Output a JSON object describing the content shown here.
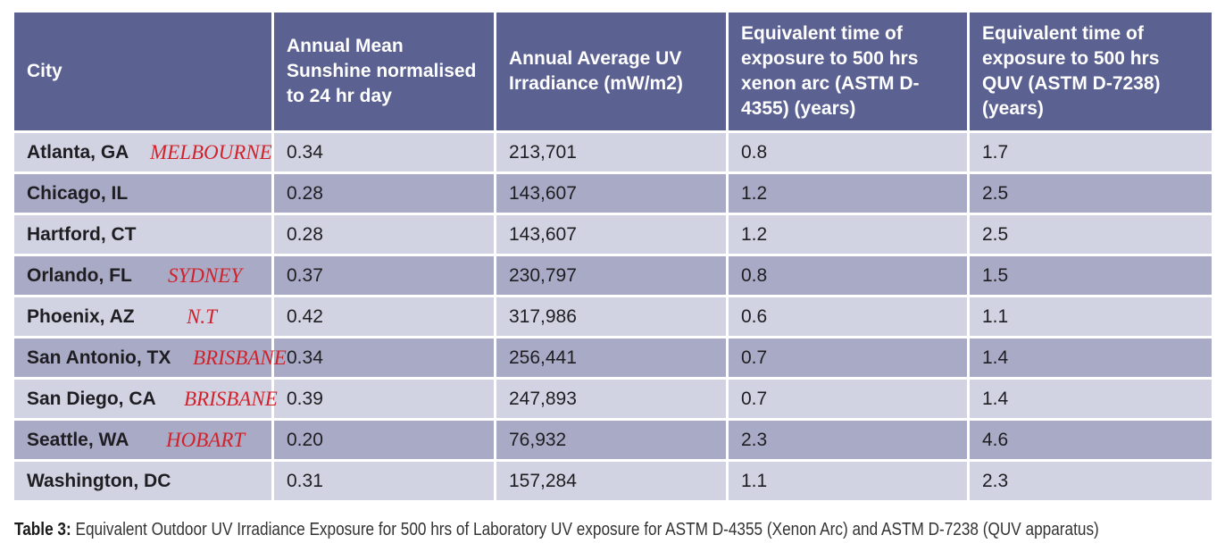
{
  "table": {
    "headers": [
      "City",
      "Annual Mean Sunshine normalised to 24 hr day",
      "Annual Average UV Irradiance (mW/m2)",
      "Equivalent time of exposure to 500 hrs xenon arc (ASTM D-4355) (years)",
      "Equivalent time of exposure to 500 hrs QUV (ASTM D-7238) (years)"
    ],
    "rows": [
      {
        "city": "Atlanta, GA",
        "annotation": "MELBOURNE",
        "sunshine": "0.34",
        "uv": "213,701",
        "xenon": "0.8",
        "quv": "1.7"
      },
      {
        "city": "Chicago, IL",
        "annotation": "",
        "sunshine": "0.28",
        "uv": "143,607",
        "xenon": "1.2",
        "quv": "2.5"
      },
      {
        "city": "Hartford, CT",
        "annotation": "",
        "sunshine": "0.28",
        "uv": "143,607",
        "xenon": "1.2",
        "quv": "2.5"
      },
      {
        "city": "Orlando, FL",
        "annotation": "SYDNEY",
        "sunshine": "0.37",
        "uv": "230,797",
        "xenon": "0.8",
        "quv": "1.5"
      },
      {
        "city": "Phoenix, AZ",
        "annotation": "N.T",
        "sunshine": "0.42",
        "uv": "317,986",
        "xenon": "0.6",
        "quv": "1.1"
      },
      {
        "city": "San Antonio, TX",
        "annotation": "BRISBANE",
        "sunshine": "0.34",
        "uv": "256,441",
        "xenon": "0.7",
        "quv": "1.4"
      },
      {
        "city": "San Diego, CA",
        "annotation": "BRISBANE",
        "sunshine": "0.39",
        "uv": "247,893",
        "xenon": "0.7",
        "quv": "1.4"
      },
      {
        "city": "Seattle, WA",
        "annotation": "HOBART",
        "sunshine": "0.20",
        "uv": "76,932",
        "xenon": "2.3",
        "quv": "4.6"
      },
      {
        "city": "Washington, DC",
        "annotation": "",
        "sunshine": "0.31",
        "uv": "157,284",
        "xenon": "1.1",
        "quv": "2.3"
      }
    ]
  },
  "caption": {
    "label": "Table 3:",
    "text": " Equivalent Outdoor UV Irradiance Exposure for 500 hrs of Laboratory UV exposure for ASTM D-4355 (Xenon Arc) and ASTM D-7238 (QUV apparatus)"
  },
  "colors": {
    "header_bg": "#5b6190",
    "row_light": "#d2d3e2",
    "row_dark": "#a9aac5",
    "annotation": "#d1212a"
  }
}
